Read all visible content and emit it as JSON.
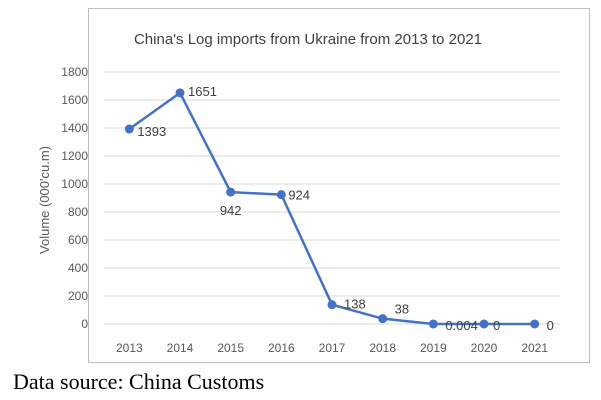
{
  "chart_data": {
    "type": "line",
    "title": "China's Log imports from Ukraine from 2013 to 2021",
    "xlabel": "",
    "ylabel": "Volume (000'cu.m)",
    "categories": [
      "2013",
      "2014",
      "2015",
      "2016",
      "2017",
      "2018",
      "2019",
      "2020",
      "2021"
    ],
    "series": [
      {
        "values": [
          1393,
          1651,
          942,
          924,
          138,
          38,
          0.004,
          0,
          0
        ]
      }
    ],
    "data_labels": [
      "1393",
      "1651",
      "942",
      "924",
      "138",
      "38",
      "0.004",
      "0",
      "0"
    ],
    "ylim": [
      0,
      1800
    ],
    "yticks": [
      "0",
      "200",
      "400",
      "600",
      "800",
      "1000",
      "1200",
      "1400",
      "1600",
      "1800"
    ],
    "grid": true,
    "legend": "none",
    "colors": {
      "series": "#4472c4",
      "grid": "#d9d9d9",
      "frame": "#bfbfbf"
    }
  },
  "caption": "Data source: China Customs"
}
